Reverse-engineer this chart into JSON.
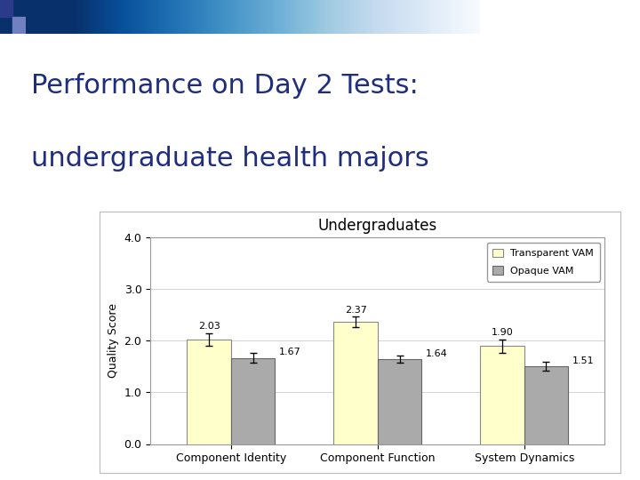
{
  "title_line1": "Performance on Day 2 Tests:",
  "title_line2": "undergraduate health majors",
  "chart_title": "Undergraduates",
  "ylabel": "Quality Score",
  "categories": [
    "Component Identity",
    "Component Function",
    "System Dynamics"
  ],
  "series": [
    {
      "name": "Transparent VAM",
      "values": [
        2.03,
        2.37,
        1.9
      ],
      "errors": [
        0.12,
        0.1,
        0.13
      ],
      "color": "#FFFFCC",
      "edgecolor": "#888888"
    },
    {
      "name": "Opaque VAM",
      "values": [
        1.67,
        1.64,
        1.51
      ],
      "errors": [
        0.09,
        0.07,
        0.09
      ],
      "color": "#AAAAAA",
      "edgecolor": "#666666"
    }
  ],
  "ylim": [
    0.0,
    4.0
  ],
  "yticks": [
    0.0,
    1.0,
    2.0,
    3.0,
    4.0
  ],
  "bar_width": 0.3,
  "title_color": "#1F2D7B",
  "title_fontsize": 22,
  "chart_title_fontsize": 12,
  "axis_fontsize": 9,
  "legend_fontsize": 8,
  "value_label_fontsize": 8,
  "background_color": "#FFFFFF",
  "chart_bg": "#FFFFFF",
  "border_color": "#999999"
}
